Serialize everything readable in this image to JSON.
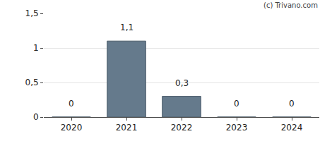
{
  "chart_data": {
    "type": "bar",
    "categories": [
      "2020",
      "2021",
      "2022",
      "2023",
      "2024"
    ],
    "values": [
      0,
      1.1,
      0.3,
      0,
      0
    ],
    "value_labels": [
      "0",
      "1,1",
      "0,3",
      "0",
      "0"
    ],
    "data_labels": true,
    "color": "#657a8c",
    "ylim": [
      0,
      1.5
    ],
    "yticks": [
      0,
      {
        "value": 0.5,
        "label": "0,5"
      },
      1,
      {
        "value": 1.5,
        "label": "1,5"
      }
    ],
    "grid": true,
    "annotations": [
      "(c) Trivano.com"
    ]
  }
}
